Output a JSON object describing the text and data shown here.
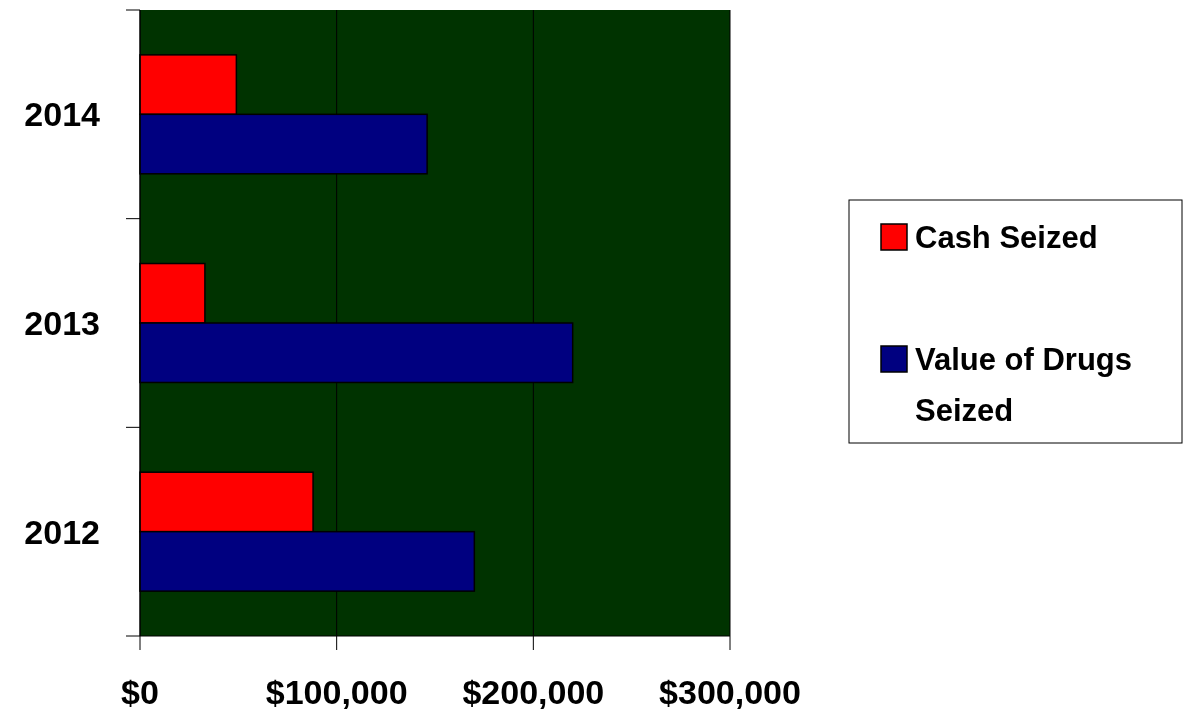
{
  "chart_data": {
    "type": "bar",
    "orientation": "horizontal",
    "categories": [
      "2014",
      "2013",
      "2012"
    ],
    "series": [
      {
        "name": "Cash Seized",
        "color": "#ff0000",
        "values": [
          49000,
          33000,
          88000
        ]
      },
      {
        "name": "Value of Drugs Seized",
        "color": "#000080",
        "values": [
          146000,
          220000,
          170000
        ]
      }
    ],
    "xlim": [
      0,
      300000
    ],
    "xticks": [
      {
        "value": 0,
        "label": "$0"
      },
      {
        "value": 100000,
        "label": "$100,000"
      },
      {
        "value": 200000,
        "label": "$200,000"
      },
      {
        "value": 300000,
        "label": "$300,000"
      }
    ],
    "grid": "x",
    "legend": "right"
  }
}
